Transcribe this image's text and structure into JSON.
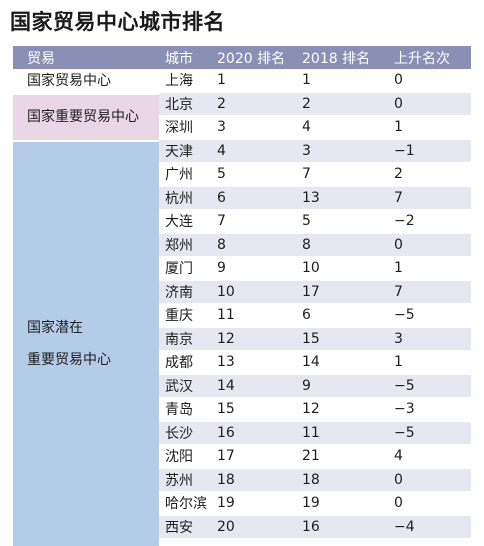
{
  "title": "国家贸易中心城市排名",
  "headers": [
    "贸易",
    "城市",
    "2020 排名",
    "2018 排名",
    "上升名次"
  ],
  "groups": [
    {
      "label": "国家贸易中心",
      "label_line2": ""
    },
    {
      "label": "国家重要贸易中心",
      "label_line2": ""
    },
    {
      "label": "国家潜在",
      "label_line2": "重要贸易中心"
    }
  ],
  "rows": [
    {
      "city": "上海",
      "r2020": "1",
      "r2018": "1",
      "change": "0"
    },
    {
      "city": "北京",
      "r2020": "2",
      "r2018": "2",
      "change": "0"
    },
    {
      "city": "深圳",
      "r2020": "3",
      "r2018": "4",
      "change": "1"
    },
    {
      "city": "天津",
      "r2020": "4",
      "r2018": "3",
      "change": "−1"
    },
    {
      "city": "广州",
      "r2020": "5",
      "r2018": "7",
      "change": "2"
    },
    {
      "city": "杭州",
      "r2020": "6",
      "r2018": "13",
      "change": "7"
    },
    {
      "city": "大连",
      "r2020": "7",
      "r2018": "5",
      "change": "−2"
    },
    {
      "city": "郑州",
      "r2020": "8",
      "r2018": "8",
      "change": "0"
    },
    {
      "city": "厦门",
      "r2020": "9",
      "r2018": "10",
      "change": "1"
    },
    {
      "city": "济南",
      "r2020": "10",
      "r2018": "17",
      "change": "7"
    },
    {
      "city": "重庆",
      "r2020": "11",
      "r2018": "6",
      "change": "−5"
    },
    {
      "city": "南京",
      "r2020": "12",
      "r2018": "15",
      "change": "3"
    },
    {
      "city": "成都",
      "r2020": "13",
      "r2018": "14",
      "change": "1"
    },
    {
      "city": "武汉",
      "r2020": "14",
      "r2018": "9",
      "change": "−5"
    },
    {
      "city": "青岛",
      "r2020": "15",
      "r2018": "12",
      "change": "−3"
    },
    {
      "city": "长沙",
      "r2020": "16",
      "r2018": "11",
      "change": "−5"
    },
    {
      "city": "沈阳",
      "r2020": "17",
      "r2018": "21",
      "change": "4"
    },
    {
      "city": "苏州",
      "r2020": "18",
      "r2018": "18",
      "change": "0"
    },
    {
      "city": "哈尔滨",
      "r2020": "19",
      "r2018": "19",
      "change": "0"
    },
    {
      "city": "西安",
      "r2020": "20",
      "r2018": "16",
      "change": "−4"
    }
  ]
}
